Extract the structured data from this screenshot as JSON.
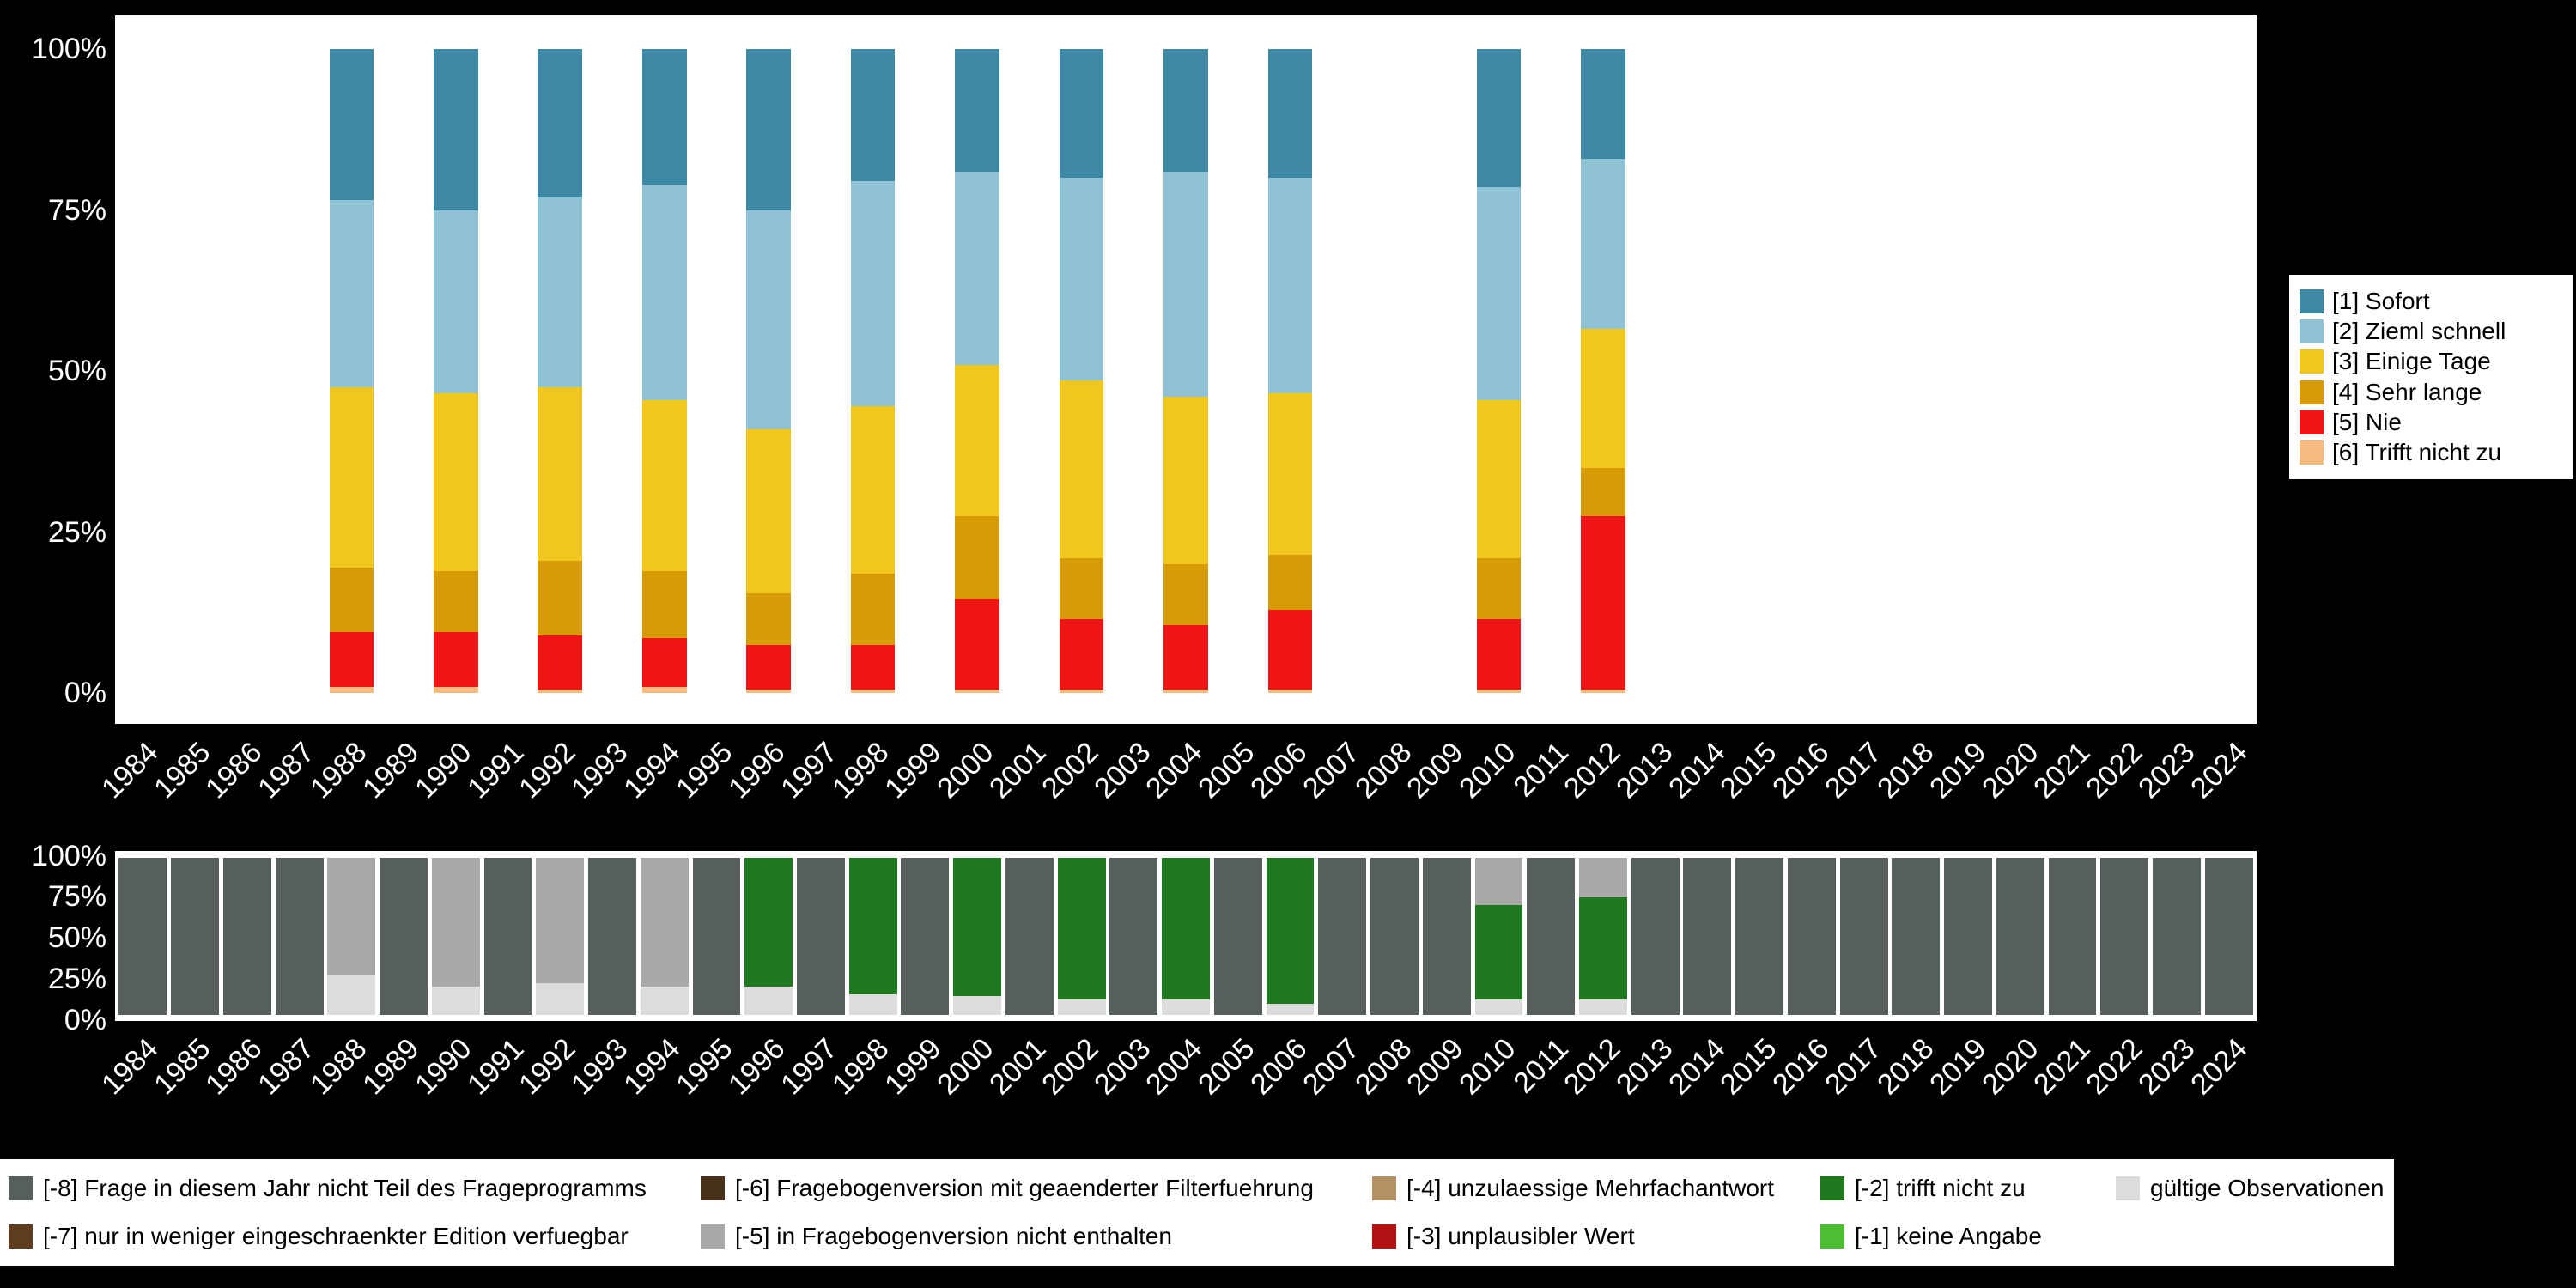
{
  "page": {
    "background": "#000000",
    "panel_background": "#ffffff",
    "axis_text_color": "#ffffff"
  },
  "axes": {
    "years": [
      "1984",
      "1985",
      "1986",
      "1987",
      "1988",
      "1989",
      "1990",
      "1991",
      "1992",
      "1993",
      "1994",
      "1995",
      "1996",
      "1997",
      "1998",
      "1999",
      "2000",
      "2001",
      "2002",
      "2003",
      "2004",
      "2005",
      "2006",
      "2007",
      "2008",
      "2009",
      "2010",
      "2011",
      "2012",
      "2013",
      "2014",
      "2015",
      "2016",
      "2017",
      "2018",
      "2019",
      "2020",
      "2021",
      "2022",
      "2023",
      "2024"
    ],
    "percent_ticks": [
      "100%",
      "75%",
      "50%",
      "25%",
      "0%"
    ]
  },
  "legend_main": {
    "items": [
      {
        "code": "1",
        "label": "[1] Sofort"
      },
      {
        "code": "2",
        "label": "[2] Zieml schnell"
      },
      {
        "code": "3",
        "label": "[3] Einige Tage"
      },
      {
        "code": "4",
        "label": "[4] Sehr lange"
      },
      {
        "code": "5",
        "label": "[5] Nie"
      },
      {
        "code": "6",
        "label": "[6] Trifft nicht zu"
      }
    ]
  },
  "legend_missing": {
    "items": [
      {
        "code": "-8",
        "label": "[-8] Frage in diesem Jahr nicht Teil des Frageprogramms",
        "col": 0,
        "row": 0
      },
      {
        "code": "-7",
        "label": "[-7] nur in weniger eingeschraenkter Edition verfuegbar",
        "col": 0,
        "row": 1
      },
      {
        "code": "-6",
        "label": "[-6] Fragebogenversion mit geaenderter Filterfuehrung",
        "col": 1,
        "row": 0
      },
      {
        "code": "-5",
        "label": "[-5] in Fragebogenversion nicht enthalten",
        "col": 1,
        "row": 1
      },
      {
        "code": "-4",
        "label": "[-4] unzulaessige Mehrfachantwort",
        "col": 2,
        "row": 0
      },
      {
        "code": "-3",
        "label": "[-3] unplausibler Wert",
        "col": 2,
        "row": 1
      },
      {
        "code": "-2",
        "label": "[-2] trifft nicht zu",
        "col": 3,
        "row": 0
      },
      {
        "code": "-1",
        "label": "[-1] keine Angabe",
        "col": 3,
        "row": 1
      },
      {
        "code": "valid",
        "label": "gültige Observationen",
        "col": 4,
        "row": 0
      }
    ]
  },
  "chart_data": [
    {
      "type": "bar",
      "variant": "stacked-100-percent",
      "title": "",
      "xlabel": "",
      "ylabel": "",
      "ylim": [
        0,
        100
      ],
      "grid": false,
      "legend_position": "right",
      "categories": [
        "1984",
        "1985",
        "1986",
        "1987",
        "1988",
        "1989",
        "1990",
        "1991",
        "1992",
        "1993",
        "1994",
        "1995",
        "1996",
        "1997",
        "1998",
        "1999",
        "2000",
        "2001",
        "2002",
        "2003",
        "2004",
        "2005",
        "2006",
        "2007",
        "2008",
        "2009",
        "2010",
        "2011",
        "2012",
        "2013",
        "2014",
        "2015",
        "2016",
        "2017",
        "2018",
        "2019",
        "2020",
        "2021",
        "2022",
        "2023",
        "2024"
      ],
      "series_labels": {
        "1": "[1] Sofort",
        "2": "[2] Zieml schnell",
        "3": "[3] Einige Tage",
        "4": "[4] Sehr lange",
        "5": "[5] Nie",
        "6": "[6] Trifft nicht zu"
      },
      "colors": {
        "1": "#3d88a5",
        "2": "#8fc2d4",
        "3": "#f2c71d",
        "4": "#d79c05",
        "5": "#f01515",
        "6": "#f6ba7e"
      },
      "stack_order_bottom_to_top": [
        "6",
        "5",
        "4",
        "3",
        "2",
        "1"
      ],
      "bars": {
        "1988": [
          [
            "6",
            1
          ],
          [
            "5",
            8.5
          ],
          [
            "4",
            10
          ],
          [
            "3",
            28
          ],
          [
            "2",
            29
          ],
          [
            "1",
            23.5
          ]
        ],
        "1990": [
          [
            "6",
            1
          ],
          [
            "5",
            8.5
          ],
          [
            "4",
            9.5
          ],
          [
            "3",
            27.5
          ],
          [
            "2",
            28.5
          ],
          [
            "1",
            25
          ]
        ],
        "1992": [
          [
            "6",
            0.5
          ],
          [
            "5",
            8.5
          ],
          [
            "4",
            11.5
          ],
          [
            "3",
            27
          ],
          [
            "2",
            29.5
          ],
          [
            "1",
            23
          ]
        ],
        "1994": [
          [
            "6",
            1
          ],
          [
            "5",
            7.5
          ],
          [
            "4",
            10.5
          ],
          [
            "3",
            26.5
          ],
          [
            "2",
            33.5
          ],
          [
            "1",
            21
          ]
        ],
        "1996": [
          [
            "6",
            0.5
          ],
          [
            "5",
            7
          ],
          [
            "4",
            8
          ],
          [
            "3",
            25.5
          ],
          [
            "2",
            34
          ],
          [
            "1",
            25
          ]
        ],
        "1998": [
          [
            "6",
            0.5
          ],
          [
            "5",
            7
          ],
          [
            "4",
            11
          ],
          [
            "3",
            26
          ],
          [
            "2",
            35
          ],
          [
            "1",
            20.5
          ]
        ],
        "2000": [
          [
            "6",
            0.5
          ],
          [
            "5",
            14
          ],
          [
            "4",
            13
          ],
          [
            "3",
            23.5
          ],
          [
            "2",
            30
          ],
          [
            "1",
            19
          ]
        ],
        "2002": [
          [
            "6",
            0.5
          ],
          [
            "5",
            11
          ],
          [
            "4",
            9.5
          ],
          [
            "3",
            27.5
          ],
          [
            "2",
            31.5
          ],
          [
            "1",
            20
          ]
        ],
        "2004": [
          [
            "6",
            0.5
          ],
          [
            "5",
            10
          ],
          [
            "4",
            9.5
          ],
          [
            "3",
            26
          ],
          [
            "2",
            35
          ],
          [
            "1",
            19
          ]
        ],
        "2006": [
          [
            "6",
            0.5
          ],
          [
            "5",
            12.5
          ],
          [
            "4",
            8.5
          ],
          [
            "3",
            25
          ],
          [
            "2",
            33.5
          ],
          [
            "1",
            20
          ]
        ],
        "2010": [
          [
            "6",
            0.5
          ],
          [
            "5",
            11
          ],
          [
            "4",
            9.5
          ],
          [
            "3",
            24.5
          ],
          [
            "2",
            33
          ],
          [
            "1",
            21.5
          ]
        ],
        "2012": [
          [
            "6",
            0.5
          ],
          [
            "5",
            27
          ],
          [
            "4",
            7.5
          ],
          [
            "3",
            21.5
          ],
          [
            "2",
            26.5
          ],
          [
            "1",
            17
          ]
        ]
      }
    },
    {
      "type": "bar",
      "variant": "stacked-100-percent",
      "title": "",
      "xlabel": "",
      "ylabel": "",
      "ylim": [
        0,
        100
      ],
      "grid": false,
      "legend_position": "bottom",
      "categories": [
        "1984",
        "1985",
        "1986",
        "1987",
        "1988",
        "1989",
        "1990",
        "1991",
        "1992",
        "1993",
        "1994",
        "1995",
        "1996",
        "1997",
        "1998",
        "1999",
        "2000",
        "2001",
        "2002",
        "2003",
        "2004",
        "2005",
        "2006",
        "2007",
        "2008",
        "2009",
        "2010",
        "2011",
        "2012",
        "2013",
        "2014",
        "2015",
        "2016",
        "2017",
        "2018",
        "2019",
        "2020",
        "2021",
        "2022",
        "2023",
        "2024"
      ],
      "series_labels": {
        "-8": "[-8] Frage in diesem Jahr nicht Teil des Frageprogramms",
        "-7": "[-7] nur in weniger eingeschraenkter Edition verfuegbar",
        "-6": "[-6] Fragebogenversion mit geaenderter Filterfuehrung",
        "-5": "[-5] in Fragebogenversion nicht enthalten",
        "-4": "[-4] unzulaessige Mehrfachantwort",
        "-3": "[-3] unplausibler Wert",
        "-2": "[-2] trifft nicht zu",
        "-1": "[-1] keine Angabe",
        "valid": "gültige Observationen"
      },
      "colors": {
        "-8": "#575f5c",
        "-7": "#5e3c1f",
        "-6": "#47311a",
        "-5": "#a9a9a9",
        "-4": "#b59065",
        "-3": "#b11212",
        "-2": "#1f7a1f",
        "-1": "#4dbd33",
        "valid": "#dcdcdc"
      },
      "stack_order_bottom_to_top": [
        "valid",
        "-1",
        "-2",
        "-3",
        "-4",
        "-5",
        "-6",
        "-7",
        "-8"
      ],
      "bars": {
        "1984": [
          [
            "-8",
            100
          ]
        ],
        "1985": [
          [
            "-8",
            100
          ]
        ],
        "1986": [
          [
            "-8",
            100
          ]
        ],
        "1987": [
          [
            "-8",
            100
          ]
        ],
        "1988": [
          [
            "valid",
            25
          ],
          [
            "-5",
            75
          ]
        ],
        "1989": [
          [
            "-8",
            100
          ]
        ],
        "1990": [
          [
            "valid",
            18
          ],
          [
            "-5",
            82
          ]
        ],
        "1991": [
          [
            "-8",
            100
          ]
        ],
        "1992": [
          [
            "valid",
            20
          ],
          [
            "-5",
            80
          ]
        ],
        "1993": [
          [
            "-8",
            100
          ]
        ],
        "1994": [
          [
            "valid",
            18
          ],
          [
            "-5",
            82
          ]
        ],
        "1995": [
          [
            "-8",
            100
          ]
        ],
        "1996": [
          [
            "valid",
            18
          ],
          [
            "-2",
            82
          ]
        ],
        "1997": [
          [
            "-8",
            100
          ]
        ],
        "1998": [
          [
            "valid",
            13
          ],
          [
            "-2",
            87
          ]
        ],
        "1999": [
          [
            "-8",
            100
          ]
        ],
        "2000": [
          [
            "valid",
            12
          ],
          [
            "-2",
            88
          ]
        ],
        "2001": [
          [
            "-8",
            100
          ]
        ],
        "2002": [
          [
            "valid",
            10
          ],
          [
            "-2",
            90
          ]
        ],
        "2003": [
          [
            "-8",
            100
          ]
        ],
        "2004": [
          [
            "valid",
            10
          ],
          [
            "-2",
            90
          ]
        ],
        "2005": [
          [
            "-8",
            100
          ]
        ],
        "2006": [
          [
            "valid",
            7
          ],
          [
            "-2",
            93
          ]
        ],
        "2007": [
          [
            "-8",
            100
          ]
        ],
        "2008": [
          [
            "-8",
            100
          ]
        ],
        "2009": [
          [
            "-8",
            100
          ]
        ],
        "2010": [
          [
            "valid",
            10
          ],
          [
            "-2",
            60
          ],
          [
            "-5",
            30
          ]
        ],
        "2011": [
          [
            "-8",
            100
          ]
        ],
        "2012": [
          [
            "valid",
            10
          ],
          [
            "-2",
            65
          ],
          [
            "-5",
            25
          ]
        ],
        "2013": [
          [
            "-8",
            100
          ]
        ],
        "2014": [
          [
            "-8",
            100
          ]
        ],
        "2015": [
          [
            "-8",
            100
          ]
        ],
        "2016": [
          [
            "-8",
            100
          ]
        ],
        "2017": [
          [
            "-8",
            100
          ]
        ],
        "2018": [
          [
            "-8",
            100
          ]
        ],
        "2019": [
          [
            "-8",
            100
          ]
        ],
        "2020": [
          [
            "-8",
            100
          ]
        ],
        "2021": [
          [
            "-8",
            100
          ]
        ],
        "2022": [
          [
            "-8",
            100
          ]
        ],
        "2023": [
          [
            "-8",
            100
          ]
        ],
        "2024": [
          [
            "-8",
            100
          ]
        ]
      }
    }
  ]
}
